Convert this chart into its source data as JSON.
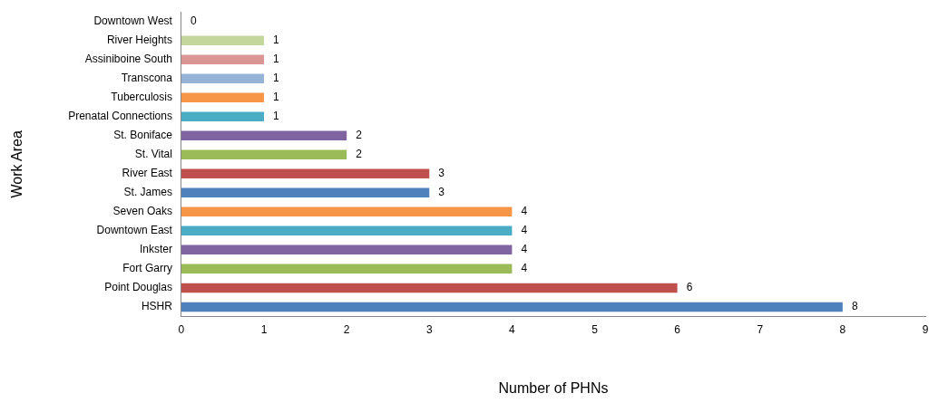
{
  "chart_data": {
    "type": "bar",
    "orientation": "horizontal",
    "xlabel": "Number of PHNs",
    "ylabel": "Work Area",
    "categories": [
      "Downtown West",
      "River Heights",
      "Assiniboine South",
      "Transcona",
      "Tuberculosis",
      "Prenatal Connections",
      "St. Boniface",
      "St. Vital",
      "River East",
      "St. James",
      "Seven Oaks",
      "Downtown East",
      "Inkster",
      "Fort Garry",
      "Point Douglas",
      "HSHR"
    ],
    "values": [
      0,
      1,
      1,
      1,
      1,
      1,
      2,
      2,
      3,
      3,
      4,
      4,
      4,
      4,
      6,
      8
    ],
    "colors": [
      "#b3a2c7",
      "#c3d69b",
      "#d99694",
      "#95b3d7",
      "#f79646",
      "#4bacc6",
      "#8064a2",
      "#9bbb59",
      "#c0504d",
      "#4f81bd",
      "#f79646",
      "#4bacc6",
      "#8064a2",
      "#9bbb59",
      "#c0504d",
      "#4f81bd"
    ],
    "xlim": [
      0,
      9
    ],
    "xticks": [
      0,
      1,
      2,
      3,
      4,
      5,
      6,
      7,
      8,
      9
    ],
    "data_labels": true,
    "grid": false,
    "legend": false
  }
}
